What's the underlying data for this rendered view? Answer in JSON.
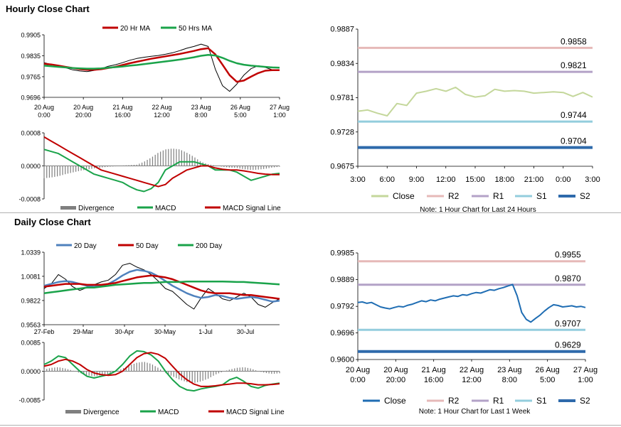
{
  "hourly_title": "Hourly Close Chart",
  "daily_title": "Daily Close Chart",
  "colors": {
    "ma_short": "#c00000",
    "ma_long": "#1aa34a",
    "ma_20d": "#4f81bd",
    "close_light": "#c4d79b",
    "close_dark": "#1f6db3",
    "R2": "#e6b9b8",
    "R1": "#b3a2c7",
    "S1": "#93cddd",
    "S2": "#2e6aab",
    "price": "#000000",
    "divergence": "#7f7f7f",
    "macd": "#1aa34a",
    "signal": "#c00000"
  },
  "chart_data": [
    {
      "id": "hourly_price",
      "type": "line",
      "legend": [
        "20 Hr MA",
        "50 Hrs MA"
      ],
      "ylim": [
        0.9696,
        0.9905
      ],
      "yticks": [
        "0.9905",
        "0.9835",
        "0.9765",
        "0.9696"
      ],
      "ytick_values": [
        0.9905,
        0.9835,
        0.9765,
        0.9696
      ],
      "xticks": [
        [
          "20 Aug",
          "0:00"
        ],
        [
          "20 Aug",
          "20:00"
        ],
        [
          "21 Aug",
          "16:00"
        ],
        [
          "22 Aug",
          "12:00"
        ],
        [
          "23 Aug",
          "8:00"
        ],
        [
          "26 Aug",
          "5:00"
        ],
        [
          "27 Aug",
          "1:00"
        ]
      ],
      "series": [
        {
          "name": "Price",
          "values": [
            0.9812,
            0.9806,
            0.98,
            0.9795,
            0.9788,
            0.9784,
            0.9782,
            0.9786,
            0.9792,
            0.98,
            0.9805,
            0.9812,
            0.982,
            0.9826,
            0.983,
            0.9833,
            0.9836,
            0.984,
            0.9845,
            0.9852,
            0.986,
            0.9866,
            0.9874,
            0.9866,
            0.979,
            0.9735,
            0.9716,
            0.974,
            0.977,
            0.9792,
            0.9802,
            0.9796,
            0.9788,
            0.9786
          ]
        },
        {
          "name": "20 Hr MA",
          "values": [
            0.9808,
            0.9806,
            0.9802,
            0.9798,
            0.9794,
            0.979,
            0.9788,
            0.9788,
            0.979,
            0.9794,
            0.9798,
            0.9804,
            0.981,
            0.9815,
            0.982,
            0.9825,
            0.9829,
            0.9833,
            0.9837,
            0.9841,
            0.9846,
            0.9851,
            0.9857,
            0.986,
            0.984,
            0.9805,
            0.977,
            0.9748,
            0.9752,
            0.9765,
            0.9777,
            0.9785,
            0.9787,
            0.9787
          ]
        },
        {
          "name": "50 Hrs MA",
          "values": [
            0.9802,
            0.98,
            0.9798,
            0.9796,
            0.9794,
            0.9793,
            0.9792,
            0.9792,
            0.9793,
            0.9795,
            0.9797,
            0.9799,
            0.9802,
            0.9804,
            0.9807,
            0.981,
            0.9813,
            0.9816,
            0.9819,
            0.9822,
            0.9826,
            0.983,
            0.9835,
            0.9838,
            0.9836,
            0.9828,
            0.9818,
            0.981,
            0.9805,
            0.9802,
            0.98,
            0.9798,
            0.9796,
            0.9795
          ]
        }
      ]
    },
    {
      "id": "hourly_macd",
      "type": "bar",
      "legend": [
        "Divergence",
        "MACD",
        "MACD Signal Line"
      ],
      "ylim": [
        -0.0008,
        0.0008
      ],
      "yticks": [
        "0.0008",
        "0.0000",
        "-0.0008"
      ],
      "ytick_values": [
        0.0008,
        0.0,
        -0.0008
      ],
      "series": [
        {
          "name": "Divergence",
          "values": [
            -0.0003,
            -0.00028,
            -0.00025,
            -0.0002,
            -0.00016,
            -0.00012,
            -9e-05,
            -6e-05,
            -4e-05,
            -2e-05,
            -1e-05,
            1e-05,
            2e-05,
            3e-05,
            0.0001,
            0.0002,
            0.00032,
            0.0004,
            0.00042,
            0.0004,
            0.00032,
            0.00022,
            0.0001,
            4e-05,
            1e-05,
            -2e-05,
            -4e-05,
            -5e-05,
            -8e-05,
            -0.0001,
            -9e-05,
            -7e-05,
            -4e-05,
            -2e-05
          ]
        },
        {
          "name": "MACD",
          "values": [
            0.0004,
            0.00035,
            0.0003,
            0.0002,
            0.0001,
            0.0,
            -0.0001,
            -0.0002,
            -0.00025,
            -0.0003,
            -0.00035,
            -0.0004,
            -0.0005,
            -0.00058,
            -0.00062,
            -0.00055,
            -0.0004,
            -0.0001,
            0.0,
            0.0001,
            0.0001,
            0.0001,
            5e-05,
            0.0,
            -0.0001,
            -0.0001,
            -0.0001,
            -0.00015,
            -0.00025,
            -0.00035,
            -0.0003,
            -0.00025,
            -0.0002,
            -0.00018
          ]
        },
        {
          "name": "MACD Signal Line",
          "values": [
            0.0007,
            0.0006,
            0.0005,
            0.0004,
            0.0003,
            0.0002,
            0.0001,
            0.0,
            -0.0001,
            -0.00015,
            -0.0002,
            -0.00025,
            -0.0003,
            -0.00035,
            -0.0004,
            -0.00045,
            -0.0005,
            -0.00045,
            -0.0003,
            -0.0002,
            -0.0001,
            -5e-05,
            0.0,
            0.0,
            -5e-05,
            -8e-05,
            -0.0001,
            -0.0001,
            -0.00012,
            -0.00015,
            -0.00018,
            -0.0002,
            -0.00021,
            -0.00021
          ]
        }
      ]
    },
    {
      "id": "hourly_levels",
      "type": "line",
      "ylim": [
        0.9675,
        0.9887
      ],
      "yticks": [
        "0.9887",
        "0.9834",
        "0.9781",
        "0.9728",
        "0.9675"
      ],
      "ytick_values": [
        0.9887,
        0.9834,
        0.9781,
        0.9728,
        0.9675
      ],
      "xticks": [
        "3:00",
        "6:00",
        "9:00",
        "12:00",
        "15:00",
        "18:00",
        "21:00",
        "0:00",
        "3:00"
      ],
      "legend": [
        "Close",
        "R2",
        "R1",
        "S1",
        "S2"
      ],
      "note": "Note: 1 Hour Chart for Last 24 Hours",
      "levels": [
        {
          "name": "R2",
          "value": 0.9858,
          "label": "0.9858"
        },
        {
          "name": "R1",
          "value": 0.9821,
          "label": "0.9821"
        },
        {
          "name": "S1",
          "value": 0.9744,
          "label": "0.9744"
        },
        {
          "name": "S2",
          "value": 0.9704,
          "label": "0.9704"
        }
      ],
      "series": [
        {
          "name": "Close",
          "values": [
            0.976,
            0.9762,
            0.9757,
            0.9753,
            0.9772,
            0.9769,
            0.9788,
            0.9791,
            0.9795,
            0.9791,
            0.9797,
            0.9786,
            0.9782,
            0.9784,
            0.9794,
            0.9791,
            0.9792,
            0.9791,
            0.9788,
            0.9789,
            0.979,
            0.9789,
            0.9783,
            0.9789,
            0.9782
          ]
        }
      ]
    },
    {
      "id": "daily_price",
      "type": "line",
      "legend": [
        "20 Day",
        "50 Day",
        "200 Day"
      ],
      "ylim": [
        0.9563,
        1.0339
      ],
      "yticks": [
        "1.0339",
        "1.0081",
        "0.9822",
        "0.9563"
      ],
      "ytick_values": [
        1.0339,
        1.0081,
        0.9822,
        0.9563
      ],
      "xticks": [
        "27-Feb",
        "29-Mar",
        "30-Apr",
        "30-May",
        "1-Jul",
        "30-Jul"
      ],
      "series": [
        {
          "name": "Price",
          "values": [
            0.995,
            1.0,
            1.01,
            1.005,
            0.997,
            0.993,
            0.996,
            0.999,
            1.002,
            1.004,
            1.01,
            1.02,
            1.022,
            1.018,
            1.015,
            1.01,
            1.003,
            0.995,
            0.992,
            0.985,
            0.978,
            0.973,
            0.985,
            0.995,
            0.99,
            0.984,
            0.982,
            0.986,
            0.99,
            0.986,
            0.978,
            0.975,
            0.98,
            0.984
          ]
        },
        {
          "name": "20 Day",
          "values": [
            0.998,
            1.0,
            1.002,
            1.003,
            1.002,
            1.0,
            0.998,
            0.997,
            0.998,
            1.0,
            1.004,
            1.009,
            1.013,
            1.015,
            1.014,
            1.012,
            1.008,
            1.003,
            0.998,
            0.994,
            0.99,
            0.987,
            0.985,
            0.986,
            0.988,
            0.987,
            0.985,
            0.984,
            0.985,
            0.986,
            0.985,
            0.983,
            0.981,
            0.982
          ]
        },
        {
          "name": "50 Day",
          "values": [
            0.997,
            0.998,
            0.999,
            1.0,
            1.0,
            1.0,
            0.999,
            0.999,
            0.999,
            1.0,
            1.001,
            1.003,
            1.005,
            1.007,
            1.008,
            1.009,
            1.008,
            1.007,
            1.005,
            1.002,
            0.999,
            0.996,
            0.993,
            0.991,
            0.99,
            0.99,
            0.99,
            0.989,
            0.988,
            0.988,
            0.987,
            0.986,
            0.985,
            0.984
          ]
        },
        {
          "name": "200 Day",
          "values": [
            0.99,
            0.991,
            0.992,
            0.993,
            0.994,
            0.995,
            0.996,
            0.996,
            0.997,
            0.998,
            0.999,
            0.9995,
            1.0,
            1.0005,
            1.001,
            1.001,
            1.0015,
            1.002,
            1.002,
            1.002,
            1.0025,
            1.0025,
            1.0025,
            1.0025,
            1.0025,
            1.0025,
            1.0023,
            1.002,
            1.002,
            1.0015,
            1.001,
            1.0005,
            1.0,
            0.9995
          ]
        }
      ]
    },
    {
      "id": "daily_macd",
      "type": "bar",
      "legend": [
        "Divergence",
        "MACD",
        "MACD Signal Line"
      ],
      "ylim": [
        -0.0085,
        0.0085
      ],
      "yticks": [
        "0.0085",
        "0.0000",
        "-0.0085"
      ],
      "ytick_values": [
        0.0085,
        0.0,
        -0.0085
      ],
      "series": [
        {
          "name": "Divergence",
          "values": [
            0.0005,
            0.001,
            0.0012,
            0.0008,
            0.0002,
            -0.0005,
            -0.0012,
            -0.0015,
            -0.0012,
            -0.0008,
            -0.0002,
            0.0008,
            0.0018,
            0.0025,
            0.0028,
            0.0022,
            0.001,
            -0.0005,
            -0.0015,
            -0.0025,
            -0.0032,
            -0.0035,
            -0.003,
            -0.0022,
            -0.001,
            -0.0002,
            0.0005,
            0.001,
            0.0012,
            0.0008,
            0.0,
            -0.0005,
            -0.0008,
            -0.0006
          ]
        },
        {
          "name": "MACD",
          "values": [
            0.002,
            0.003,
            0.0045,
            0.004,
            0.002,
            0.0,
            -0.0015,
            -0.002,
            -0.0015,
            -0.001,
            0.0,
            0.002,
            0.0045,
            0.006,
            0.0058,
            0.0048,
            0.003,
            0.0,
            -0.0025,
            -0.0045,
            -0.0055,
            -0.0058,
            -0.0052,
            -0.0048,
            -0.0045,
            -0.004,
            -0.0025,
            -0.0018,
            -0.003,
            -0.0045,
            -0.005,
            -0.0042,
            -0.0038,
            -0.0035
          ]
        },
        {
          "name": "MACD Signal Line",
          "values": [
            0.0015,
            0.002,
            0.003,
            0.0035,
            0.003,
            0.002,
            0.0005,
            -0.0005,
            -0.001,
            -0.0012,
            -0.001,
            0.0,
            0.002,
            0.004,
            0.0052,
            0.0055,
            0.005,
            0.0038,
            0.0015,
            -0.0008,
            -0.0025,
            -0.0038,
            -0.0045,
            -0.0045,
            -0.0043,
            -0.004,
            -0.0038,
            -0.0035,
            -0.0035,
            -0.0037,
            -0.004,
            -0.004,
            -0.0039,
            -0.0037
          ]
        }
      ]
    },
    {
      "id": "daily_levels",
      "type": "line",
      "ylim": [
        0.96,
        0.9985
      ],
      "yticks": [
        "0.9985",
        "0.9889",
        "0.9792",
        "0.9696",
        "0.9600"
      ],
      "ytick_values": [
        0.9985,
        0.9889,
        0.9792,
        0.9696,
        0.96
      ],
      "xticks": [
        [
          "20 Aug",
          "0:00"
        ],
        [
          "20 Aug",
          "20:00"
        ],
        [
          "21 Aug",
          "16:00"
        ],
        [
          "22 Aug",
          "12:00"
        ],
        [
          "23 Aug",
          "8:00"
        ],
        [
          "26 Aug",
          "5:00"
        ],
        [
          "27 Aug",
          "1:00"
        ]
      ],
      "legend": [
        "Close",
        "R2",
        "R1",
        "S1",
        "S2"
      ],
      "note": "Note: 1 Hour Chart for Last 1 Week",
      "levels": [
        {
          "name": "R2",
          "value": 0.9955,
          "label": "0.9955"
        },
        {
          "name": "R1",
          "value": 0.987,
          "label": "0.9870"
        },
        {
          "name": "S1",
          "value": 0.9707,
          "label": "0.9707"
        },
        {
          "name": "S2",
          "value": 0.9629,
          "label": "0.9629"
        }
      ],
      "series": [
        {
          "name": "Close",
          "values": [
            0.9806,
            0.9808,
            0.9803,
            0.9806,
            0.9798,
            0.979,
            0.9786,
            0.9783,
            0.9788,
            0.9792,
            0.979,
            0.9796,
            0.98,
            0.9806,
            0.9812,
            0.9809,
            0.9815,
            0.9812,
            0.9818,
            0.9822,
            0.9826,
            0.983,
            0.9828,
            0.9834,
            0.9832,
            0.9838,
            0.9842,
            0.984,
            0.9846,
            0.9852,
            0.985,
            0.9856,
            0.986,
            0.9866,
            0.9871,
            0.983,
            0.977,
            0.9745,
            0.9735,
            0.9748,
            0.976,
            0.9775,
            0.9788,
            0.9798,
            0.9795,
            0.979,
            0.9792,
            0.9794,
            0.979,
            0.9792,
            0.9788
          ]
        }
      ]
    }
  ]
}
